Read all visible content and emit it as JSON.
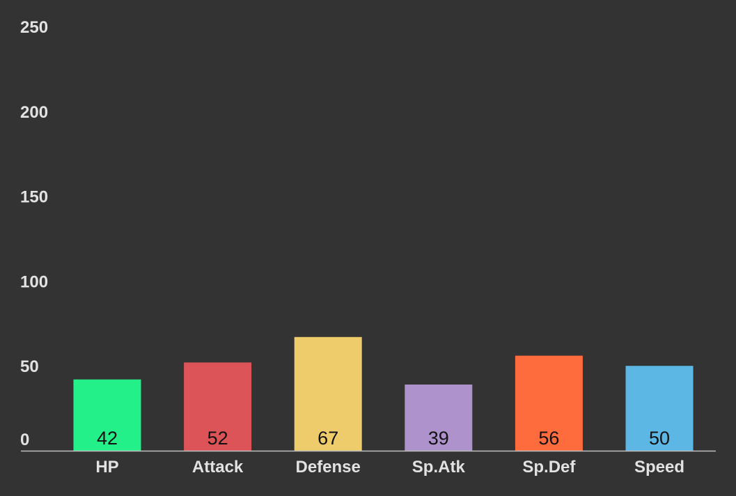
{
  "chart_data": {
    "type": "bar",
    "categories": [
      "HP",
      "Attack",
      "Defense",
      "Sp.Atk",
      "Sp.Def",
      "Speed"
    ],
    "values": [
      42,
      52,
      67,
      39,
      56,
      50
    ],
    "colors": [
      "#24f08a",
      "#dc5457",
      "#eecb6b",
      "#ae92cc",
      "#fe6b3d",
      "#5db7e5"
    ],
    "yticks": [
      0,
      50,
      100,
      150,
      200,
      250
    ],
    "ylim": [
      0,
      250
    ],
    "grid": false,
    "legend": "none",
    "background": "#333333",
    "axis_color": "#bdbdbd",
    "tick_label_color": "#e2e2e2",
    "data_label_color": "#111111"
  }
}
